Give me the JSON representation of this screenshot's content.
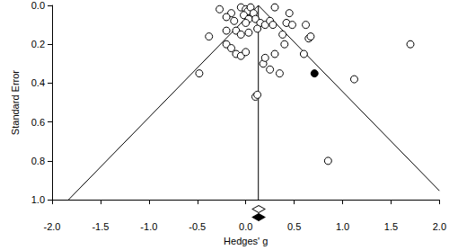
{
  "chart_data": {
    "type": "scatter",
    "x_label": "Hedges' g",
    "y_label": "Standard Error",
    "xlim": [
      -2,
      2
    ],
    "ylim": [
      0,
      1
    ],
    "xticks": [
      {
        "value": -2,
        "label": "-2.0"
      },
      {
        "value": -1.5,
        "label": "-1.5"
      },
      {
        "value": -1,
        "label": "-1.0"
      },
      {
        "value": -0.5,
        "label": "-0.5"
      },
      {
        "value": 0,
        "label": "0.0"
      },
      {
        "value": 0.5,
        "label": "0.5"
      },
      {
        "value": 1,
        "label": "1.0"
      },
      {
        "value": 1.5,
        "label": "1.5"
      },
      {
        "value": 2,
        "label": "2.0"
      }
    ],
    "yticks": [
      {
        "value": 0,
        "label": "0.0"
      },
      {
        "value": 0.2,
        "label": "0.2"
      },
      {
        "value": 0.4,
        "label": "0.4"
      },
      {
        "value": 0.6,
        "label": "0.6"
      },
      {
        "value": 0.8,
        "label": "0.8"
      },
      {
        "value": 1,
        "label": "1.0"
      }
    ],
    "grid": false,
    "series": [
      {
        "type": "scatter",
        "marker": "open_circle",
        "color": "#000000",
        "x": [
          -0.27,
          -0.15,
          -0.05,
          0.0,
          0.02,
          0.05,
          -0.02,
          0.08,
          0.1,
          0.15,
          0.2,
          0.25,
          0.28,
          0.3,
          0.45,
          0.42,
          0.03,
          -0.2,
          -0.12,
          0.0,
          -0.2,
          -0.1,
          -0.05,
          0.03,
          0.12,
          -0.38,
          -0.2,
          -0.15,
          -0.1,
          -0.05,
          0.0,
          0.1,
          0.12,
          0.18,
          0.2,
          0.25,
          0.3,
          0.35,
          0.4,
          0.38,
          0.48,
          0.6,
          0.65,
          0.67,
          0.62,
          0.85,
          1.12,
          1.7,
          -0.48
        ],
        "values": [
          0.02,
          0.04,
          0.01,
          0.02,
          0.03,
          0.01,
          0.05,
          0.04,
          0.07,
          0.09,
          0.1,
          0.08,
          0.1,
          0.01,
          0.04,
          0.09,
          0.07,
          0.06,
          0.08,
          0.09,
          0.13,
          0.13,
          0.15,
          0.14,
          0.12,
          0.16,
          0.2,
          0.22,
          0.25,
          0.26,
          0.24,
          0.47,
          0.46,
          0.3,
          0.27,
          0.33,
          0.25,
          0.35,
          0.2,
          0.15,
          0.1,
          0.25,
          0.17,
          0.16,
          0.1,
          0.8,
          0.38,
          0.2,
          0.35
        ]
      },
      {
        "type": "scatter",
        "marker": "filled_circle",
        "color": "#000000",
        "x": [
          0.71
        ],
        "values": [
          0.35
        ]
      },
      {
        "type": "line",
        "line_style": "solid",
        "color": "#000000",
        "x": [
          0.13,
          -1.83
        ],
        "values": [
          0,
          1
        ]
      },
      {
        "type": "line",
        "line_style": "solid",
        "color": "#000000",
        "x": [
          0.13,
          2.0
        ],
        "values": [
          0,
          0.954
        ]
      },
      {
        "type": "line",
        "line_style": "solid",
        "color": "#000000",
        "x": [
          0.13,
          0.13
        ],
        "values": [
          0,
          1
        ]
      },
      {
        "type": "summary",
        "marker": "open_diamond",
        "color": "#000000",
        "x": [
          0.13
        ]
      },
      {
        "type": "summary",
        "marker": "filled_diamond",
        "color": "#000000",
        "x": [
          0.13
        ]
      }
    ]
  }
}
